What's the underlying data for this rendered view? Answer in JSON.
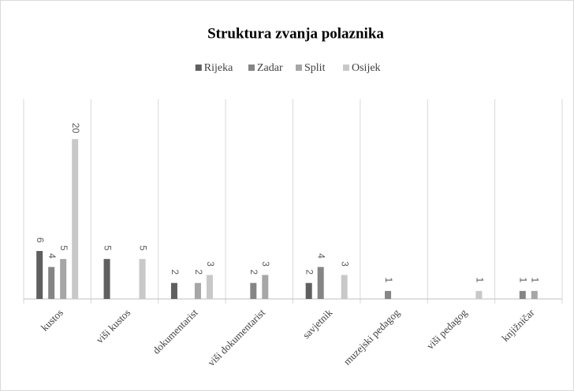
{
  "chart_data": {
    "type": "bar",
    "title": "Struktura zvanja polaznika",
    "categories": [
      "kustos",
      "viši kustos",
      "dokumentarist",
      "viši dokumentarist",
      "savjetnik",
      "muzejski pedagog",
      "viši pedagog",
      "knjižničar"
    ],
    "series": [
      {
        "name": "Rijeka",
        "color": "#5f5f5f",
        "values": [
          6,
          5,
          2,
          null,
          2,
          null,
          null,
          null
        ]
      },
      {
        "name": "Zadar",
        "color": "#858585",
        "values": [
          4,
          null,
          null,
          2,
          4,
          1,
          null,
          1
        ]
      },
      {
        "name": "Split",
        "color": "#a6a6a6",
        "values": [
          5,
          null,
          2,
          3,
          null,
          null,
          null,
          1
        ]
      },
      {
        "name": "Osijek",
        "color": "#c8c8c8",
        "values": [
          20,
          5,
          3,
          null,
          3,
          null,
          1,
          null
        ]
      }
    ],
    "ylim": [
      0,
      25
    ],
    "legend": "top"
  }
}
